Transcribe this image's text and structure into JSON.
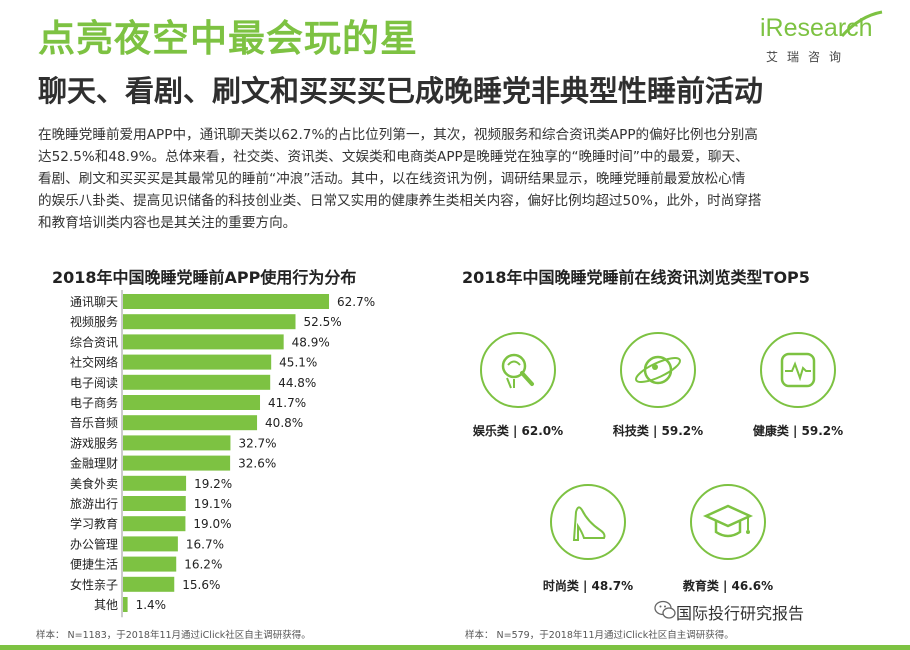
{
  "header": {
    "title": "点亮夜空中最会玩的星",
    "subtitle": "聊天、看剧、刷文和买买买已成晚睡党非典型性睡前活动"
  },
  "logo": {
    "brand": "iResearch",
    "cn": "艾瑞咨询"
  },
  "paragraph": [
    "在晚睡党睡前爱用APP中，通讯聊天类以62.7%的占比位列第一，其次，视频服务和综合资讯类APP的偏好比例也分别高",
    "达52.5%和48.9%。总体来看，社交类、资讯类、文娱类和电商类APP是晚睡党在独享的“晚睡时间”中的最爱，聊天、",
    "看剧、刷文和买买买是其最常见的睡前“冲浪”活动。其中，以在线资讯为例，调研结果显示，晚睡党睡前最爱放松心情",
    "的娱乐八卦类、提高见识储备的科技创业类、日常又实用的健康养生类相关内容，偏好比例均超过50%，此外，时尚穿搭",
    "和教育培训类内容也是其关注的重要方向。"
  ],
  "left_chart_title": "2018年中国晚睡党睡前APP使用行为分布",
  "right_chart_title": "2018年中国晚睡党睡前在线资讯浏览类型TOP5",
  "left_note": "样本： N=1183，于2018年11月通过iClick社区自主调研获得。",
  "right_note": "样本： N=579，于2018年11月通过iClick社区自主调研获得。",
  "colors": {
    "accent": "#7dc242",
    "text": "#333333"
  },
  "chart_data": [
    {
      "type": "bar",
      "orientation": "horizontal",
      "title": "2018年中国晚睡党睡前APP使用行为分布",
      "categories": [
        "通讯聊天",
        "视频服务",
        "综合资讯",
        "社交网络",
        "电子阅读",
        "电子商务",
        "音乐音频",
        "游戏服务",
        "金融理财",
        "美食外卖",
        "旅游出行",
        "学习教育",
        "办公管理",
        "便捷生活",
        "女性亲子",
        "其他"
      ],
      "values": [
        62.7,
        52.5,
        48.9,
        45.1,
        44.8,
        41.7,
        40.8,
        32.7,
        32.6,
        19.2,
        19.1,
        19.0,
        16.7,
        16.2,
        15.6,
        1.4
      ],
      "value_labels": [
        "62.7%",
        "52.5%",
        "48.9%",
        "45.1%",
        "44.8%",
        "41.7%",
        "40.8%",
        "32.7%",
        "32.6%",
        "19.2%",
        "19.1%",
        "19.0%",
        "16.7%",
        "16.2%",
        "15.6%",
        "1.4%"
      ],
      "unit": "%",
      "xlim": [
        0,
        70
      ]
    },
    {
      "type": "table",
      "title": "2018年中国晚睡党睡前在线资讯浏览类型TOP5",
      "items": [
        {
          "label": "娱乐类 | 62.0%",
          "category": "娱乐类",
          "value": 62.0,
          "icon": "lightbulb-icon"
        },
        {
          "label": "科技类 | 59.2%",
          "category": "科技类",
          "value": 59.2,
          "icon": "planet-icon"
        },
        {
          "label": "健康类 | 59.2%",
          "category": "健康类",
          "value": 59.2,
          "icon": "health-monitor-icon"
        },
        {
          "label": "时尚类 | 48.7%",
          "category": "时尚类",
          "value": 48.7,
          "icon": "high-heel-icon"
        },
        {
          "label": "教育类 | 46.6%",
          "category": "教育类",
          "value": 46.6,
          "icon": "graduation-cap-icon"
        }
      ]
    }
  ],
  "footer": {
    "text": "国际投行研究报告",
    "icon": "wechat-icon"
  }
}
